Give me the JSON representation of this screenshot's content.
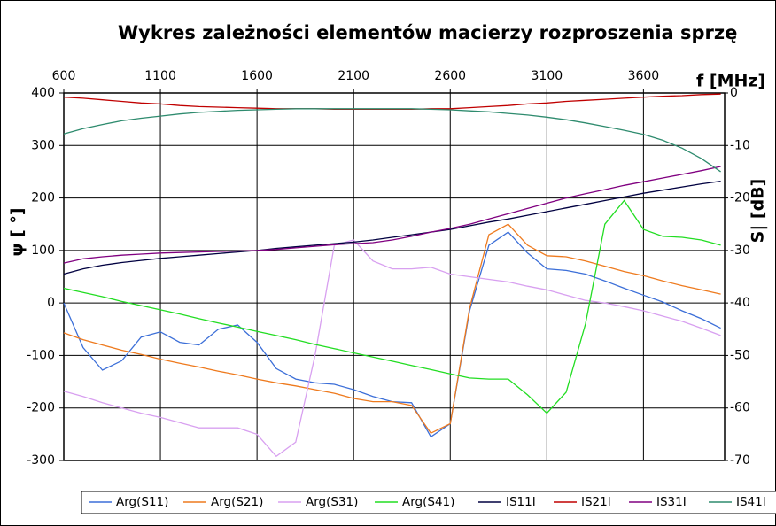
{
  "chart_data": {
    "type": "line",
    "title": "Wykres zależności elementów macierzy rozproszenia sprzę",
    "x_label": "f [MHz]",
    "y_label": "ψ [ °]",
    "y2_label": "S| [dB]",
    "x": [
      600,
      700,
      800,
      900,
      1000,
      1100,
      1200,
      1300,
      1400,
      1500,
      1600,
      1700,
      1800,
      1900,
      2000,
      2100,
      2200,
      2300,
      2400,
      2500,
      2600,
      2700,
      2800,
      2900,
      3000,
      3100,
      3200,
      3300,
      3400,
      3500,
      3600,
      3700,
      3800,
      3900,
      4000
    ],
    "xlim": [
      600,
      4020
    ],
    "xticks": [
      600,
      1100,
      1600,
      2100,
      2600,
      3100,
      3600
    ],
    "ylim": [
      -300,
      400
    ],
    "yticks": [
      -300,
      -200,
      -100,
      0,
      100,
      200,
      300,
      400
    ],
    "y2lim": [
      -70,
      0
    ],
    "y2ticks": [
      -70,
      -60,
      -50,
      -40,
      -30,
      -20,
      -10,
      0
    ],
    "grid": true,
    "legend": "bottom",
    "series": [
      {
        "name": "Arg(S11)",
        "color": "#3c6fd8",
        "axis": "y",
        "values": [
          0,
          -85,
          -128,
          -110,
          -65,
          -55,
          -75,
          -80,
          -50,
          -42,
          -75,
          -125,
          -145,
          -152,
          -155,
          -165,
          -178,
          -188,
          -190,
          -255,
          -230,
          -15,
          110,
          135,
          95,
          65,
          62,
          55,
          42,
          28,
          15,
          2,
          -15,
          -30,
          -48
        ]
      },
      {
        "name": "Arg(S21)",
        "color": "#ee7a1e",
        "axis": "y",
        "values": [
          -57,
          -70,
          -80,
          -90,
          -98,
          -107,
          -115,
          -122,
          -130,
          -137,
          -145,
          -152,
          -158,
          -165,
          -172,
          -182,
          -188,
          -188,
          -195,
          -248,
          -230,
          -10,
          130,
          150,
          110,
          90,
          88,
          80,
          70,
          60,
          52,
          42,
          33,
          25,
          17
        ]
      },
      {
        "name": "Arg(S31)",
        "color": "#d8a0f0",
        "axis": "y",
        "values": [
          -168,
          -178,
          -190,
          -200,
          -210,
          -218,
          -228,
          -238,
          -238,
          -238,
          -250,
          -292,
          -265,
          -100,
          110,
          120,
          80,
          65,
          65,
          68,
          55,
          50,
          45,
          40,
          32,
          25,
          15,
          5,
          0,
          -7,
          -15,
          -25,
          -35,
          -48,
          -62
        ]
      },
      {
        "name": "Arg(S41)",
        "color": "#22dd22",
        "axis": "y",
        "values": [
          28,
          20,
          12,
          3,
          -5,
          -13,
          -21,
          -30,
          -38,
          -46,
          -54,
          -62,
          -70,
          -79,
          -87,
          -95,
          -103,
          -111,
          -119,
          -127,
          -135,
          -143,
          -145,
          -145,
          -175,
          -210,
          -170,
          -40,
          150,
          195,
          140,
          127,
          125,
          120,
          110
        ]
      },
      {
        "name": "IS11I",
        "color": "#000040",
        "axis": "y2",
        "values": [
          -34.5,
          -33.5,
          -32.8,
          -32.3,
          -31.9,
          -31.5,
          -31.2,
          -30.9,
          -30.6,
          -30.3,
          -30,
          -29.6,
          -29.3,
          -29,
          -28.7,
          -28.4,
          -28,
          -27.5,
          -27,
          -26.5,
          -26,
          -25.3,
          -24.6,
          -24,
          -23.3,
          -22.6,
          -21.9,
          -21.2,
          -20.5,
          -19.8,
          -19.1,
          -18.5,
          -17.9,
          -17.3,
          -16.8
        ]
      },
      {
        "name": "IS21I",
        "color": "#c00000",
        "axis": "y2",
        "values": [
          -0.8,
          -1,
          -1.3,
          -1.6,
          -1.9,
          -2.1,
          -2.4,
          -2.6,
          -2.7,
          -2.8,
          -2.9,
          -3,
          -3,
          -3,
          -3.1,
          -3.1,
          -3.1,
          -3.1,
          -3.1,
          -3,
          -3,
          -2.8,
          -2.6,
          -2.4,
          -2.1,
          -1.9,
          -1.6,
          -1.4,
          -1.2,
          -1,
          -0.8,
          -0.6,
          -0.5,
          -0.3,
          -0.2
        ]
      },
      {
        "name": "IS31I",
        "color": "#800080",
        "axis": "y2",
        "values": [
          -32.4,
          -31.6,
          -31.2,
          -30.9,
          -30.7,
          -30.5,
          -30.4,
          -30.3,
          -30.2,
          -30.1,
          -30,
          -29.8,
          -29.5,
          -29.2,
          -28.9,
          -28.7,
          -28.5,
          -28,
          -27.3,
          -26.5,
          -25.8,
          -25,
          -24,
          -23,
          -22,
          -21,
          -20,
          -19.2,
          -18.4,
          -17.6,
          -16.9,
          -16.2,
          -15.5,
          -14.8,
          -14
        ]
      },
      {
        "name": "IS41I",
        "color": "#2e8b6e",
        "axis": "y2",
        "values": [
          -7.8,
          -6.8,
          -6,
          -5.3,
          -4.8,
          -4.4,
          -4,
          -3.7,
          -3.5,
          -3.3,
          -3.2,
          -3.1,
          -3,
          -3,
          -3,
          -3,
          -3,
          -3,
          -3,
          -3.1,
          -3.2,
          -3.4,
          -3.6,
          -3.9,
          -4.2,
          -4.6,
          -5.1,
          -5.7,
          -6.4,
          -7.1,
          -7.9,
          -9,
          -10.5,
          -12.5,
          -15
        ]
      }
    ]
  }
}
